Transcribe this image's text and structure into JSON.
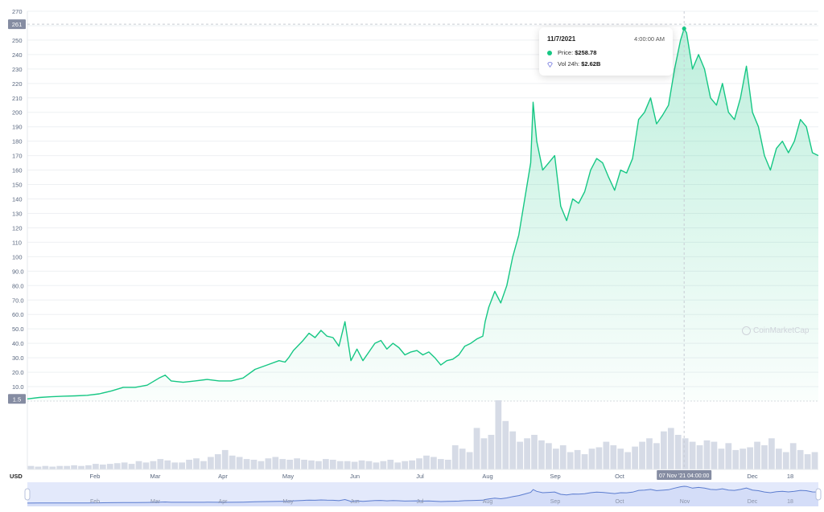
{
  "chart_data": {
    "type": "area",
    "x_months": [
      "Feb",
      "Mar",
      "Apr",
      "May",
      "Jun",
      "Jul",
      "Aug",
      "Sep",
      "Oct",
      "Nov",
      "Dec",
      "18"
    ],
    "y_ticks": [
      "270",
      "260",
      "250",
      "240",
      "230",
      "220",
      "210",
      "200",
      "190",
      "180",
      "170",
      "160",
      "150",
      "140",
      "130",
      "120",
      "110",
      "100",
      "90.0",
      "80.0",
      "70.0",
      "60.0",
      "50.0",
      "40.0",
      "30.0",
      "20.0",
      "10.0"
    ],
    "ylim": [
      0,
      270
    ],
    "currency_label": "USD",
    "high_marker": "261",
    "low_marker": "1.5",
    "crosshair_x_label": "07 Nov '21 04:00:00",
    "price_series": [
      [
        0,
        1.5
      ],
      [
        10,
        2.5
      ],
      [
        20,
        3
      ],
      [
        30,
        3.4
      ],
      [
        40,
        3.6
      ],
      [
        50,
        4
      ],
      [
        60,
        5
      ],
      [
        70,
        7
      ],
      [
        80,
        9.5
      ],
      [
        90,
        9.5
      ],
      [
        100,
        11
      ],
      [
        110,
        16
      ],
      [
        115,
        18
      ],
      [
        120,
        14
      ],
      [
        130,
        13
      ],
      [
        140,
        14
      ],
      [
        150,
        15
      ],
      [
        160,
        14
      ],
      [
        170,
        14
      ],
      [
        180,
        16
      ],
      [
        190,
        22
      ],
      [
        200,
        25
      ],
      [
        210,
        28
      ],
      [
        215,
        27
      ],
      [
        218,
        30
      ],
      [
        222,
        35
      ],
      [
        230,
        42
      ],
      [
        235,
        47
      ],
      [
        240,
        44
      ],
      [
        245,
        49
      ],
      [
        250,
        45
      ],
      [
        255,
        44
      ],
      [
        260,
        38
      ],
      [
        265,
        55
      ],
      [
        270,
        28
      ],
      [
        275,
        36
      ],
      [
        280,
        28
      ],
      [
        285,
        34
      ],
      [
        290,
        40
      ],
      [
        295,
        42
      ],
      [
        300,
        36
      ],
      [
        305,
        40
      ],
      [
        310,
        37
      ],
      [
        315,
        32
      ],
      [
        320,
        34
      ],
      [
        325,
        35
      ],
      [
        330,
        32
      ],
      [
        335,
        34
      ],
      [
        340,
        30
      ],
      [
        345,
        25
      ],
      [
        350,
        28
      ],
      [
        355,
        29
      ],
      [
        360,
        32
      ],
      [
        365,
        38
      ],
      [
        370,
        40
      ],
      [
        375,
        43
      ],
      [
        380,
        45
      ],
      [
        382,
        55
      ],
      [
        385,
        65
      ],
      [
        390,
        76
      ],
      [
        395,
        68
      ],
      [
        400,
        80
      ],
      [
        405,
        100
      ],
      [
        410,
        115
      ],
      [
        415,
        140
      ],
      [
        420,
        165
      ],
      [
        422,
        207
      ],
      [
        425,
        180
      ],
      [
        430,
        160
      ],
      [
        435,
        165
      ],
      [
        440,
        170
      ],
      [
        445,
        135
      ],
      [
        450,
        125
      ],
      [
        455,
        140
      ],
      [
        460,
        137
      ],
      [
        465,
        145
      ],
      [
        470,
        160
      ],
      [
        475,
        168
      ],
      [
        480,
        165
      ],
      [
        485,
        155
      ],
      [
        490,
        146
      ],
      [
        495,
        160
      ],
      [
        500,
        158
      ],
      [
        505,
        168
      ],
      [
        510,
        195
      ],
      [
        515,
        200
      ],
      [
        520,
        210
      ],
      [
        525,
        192
      ],
      [
        530,
        198
      ],
      [
        535,
        205
      ],
      [
        540,
        230
      ],
      [
        545,
        250
      ],
      [
        548,
        258
      ],
      [
        550,
        255
      ],
      [
        555,
        230
      ],
      [
        560,
        240
      ],
      [
        565,
        230
      ],
      [
        570,
        210
      ],
      [
        575,
        205
      ],
      [
        580,
        220
      ],
      [
        585,
        200
      ],
      [
        590,
        195
      ],
      [
        595,
        210
      ],
      [
        600,
        232
      ],
      [
        605,
        200
      ],
      [
        610,
        190
      ],
      [
        615,
        170
      ],
      [
        620,
        160
      ],
      [
        625,
        175
      ],
      [
        630,
        180
      ],
      [
        635,
        172
      ],
      [
        640,
        180
      ],
      [
        645,
        195
      ],
      [
        650,
        190
      ],
      [
        655,
        172
      ],
      [
        660,
        170
      ]
    ],
    "volume_series": [
      0.05,
      0.04,
      0.05,
      0.04,
      0.05,
      0.05,
      0.06,
      0.05,
      0.06,
      0.08,
      0.07,
      0.08,
      0.09,
      0.1,
      0.08,
      0.12,
      0.1,
      0.12,
      0.15,
      0.13,
      0.1,
      0.1,
      0.14,
      0.16,
      0.12,
      0.18,
      0.22,
      0.28,
      0.2,
      0.18,
      0.15,
      0.14,
      0.12,
      0.16,
      0.18,
      0.15,
      0.14,
      0.16,
      0.14,
      0.13,
      0.12,
      0.15,
      0.14,
      0.12,
      0.12,
      0.11,
      0.13,
      0.12,
      0.1,
      0.12,
      0.14,
      0.1,
      0.12,
      0.13,
      0.16,
      0.2,
      0.18,
      0.15,
      0.14,
      0.35,
      0.3,
      0.25,
      0.6,
      0.45,
      0.5,
      1.0,
      0.7,
      0.55,
      0.4,
      0.45,
      0.5,
      0.42,
      0.38,
      0.3,
      0.35,
      0.25,
      0.28,
      0.22,
      0.3,
      0.32,
      0.4,
      0.35,
      0.3,
      0.25,
      0.33,
      0.4,
      0.45,
      0.38,
      0.55,
      0.6,
      0.5,
      0.45,
      0.4,
      0.35,
      0.42,
      0.4,
      0.3,
      0.38,
      0.28,
      0.3,
      0.32,
      0.4,
      0.35,
      0.45,
      0.3,
      0.25,
      0.38,
      0.28,
      0.22,
      0.25
    ],
    "axis_label_vol": "",
    "tooltip": {
      "date": "11/7/2021",
      "time": "4:00:00 AM",
      "price_label": "Price:",
      "price_value": "$258.78",
      "vol_label": "Vol 24h:",
      "vol_value": "$2.62B"
    }
  },
  "watermark": "CoinMarketCap",
  "colors": {
    "line": "#16c784",
    "area_top": "#16c784",
    "grid": "#eef0f3",
    "volume": "#d6dbe6",
    "navigator_line": "#5b7ccf",
    "navigator_fill": "#e3e9fb",
    "marker_bg": "#858ca2"
  }
}
